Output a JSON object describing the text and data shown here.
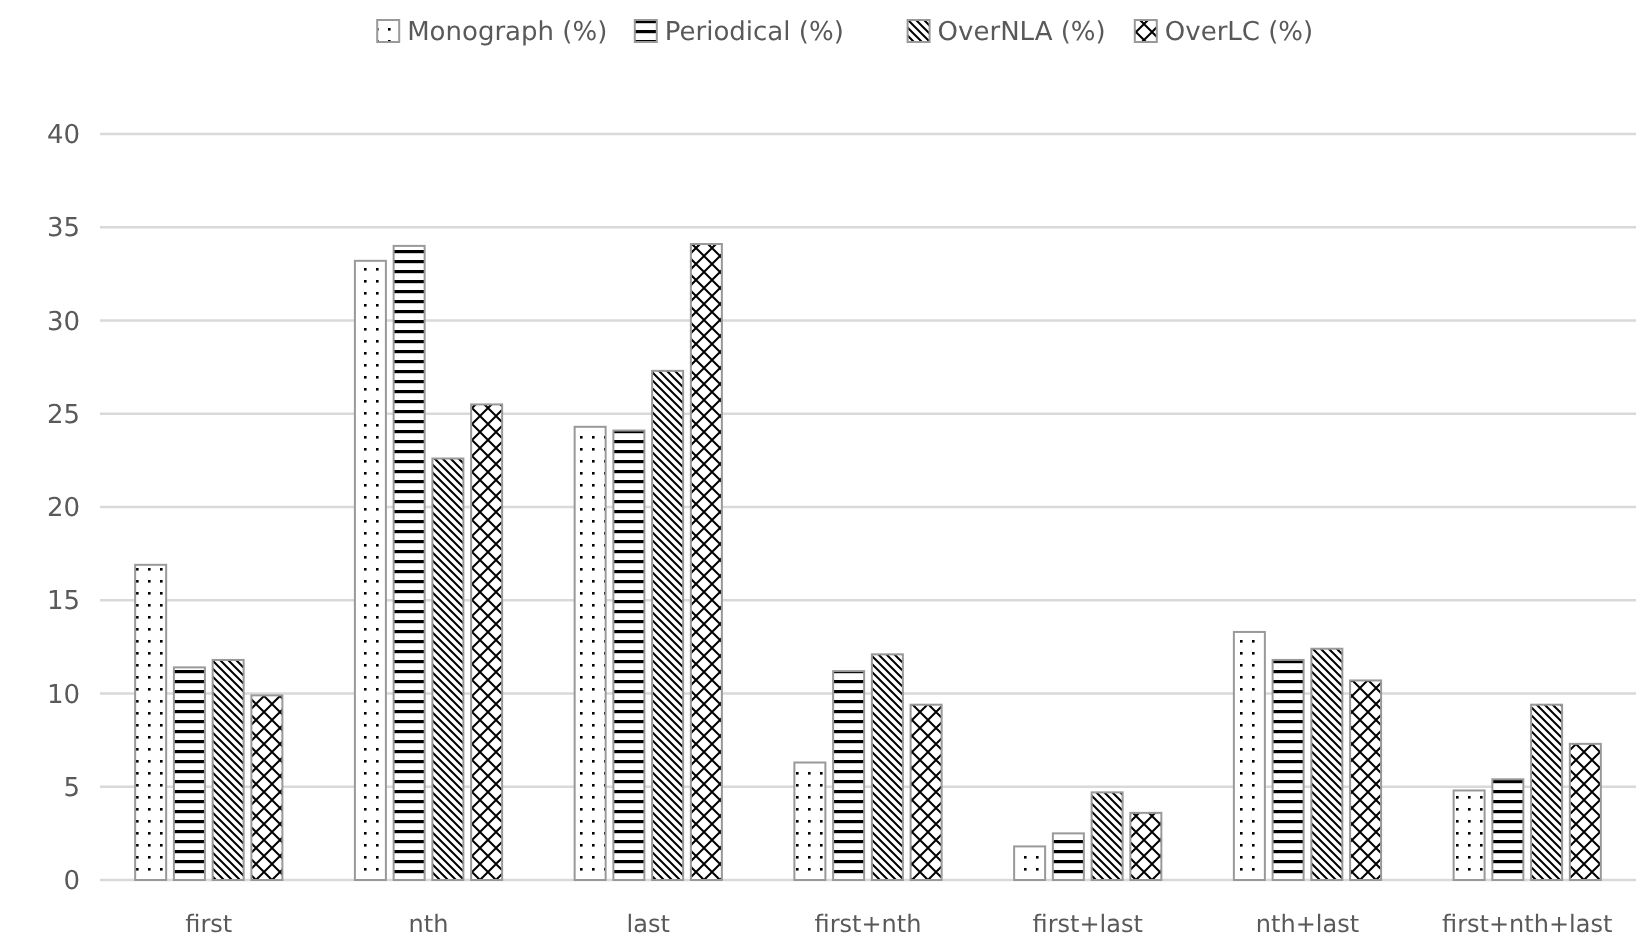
{
  "chart_data": {
    "type": "bar",
    "categories": [
      "first",
      "nth",
      "last",
      "first+nth",
      "first+last",
      "nth+last",
      "first+nth+last"
    ],
    "series": [
      {
        "name": "Monograph (%)",
        "color": "#999999",
        "values": [
          16.9,
          33.2,
          24.3,
          6.3,
          1.8,
          13.3,
          4.8
        ]
      },
      {
        "name": "Periodical (%)",
        "color": "#999999",
        "values": [
          11.4,
          34.0,
          24.1,
          11.2,
          2.5,
          11.8,
          5.4
        ]
      },
      {
        "name": "OverNLA (%)",
        "color": "#999999",
        "values": [
          11.8,
          22.6,
          27.3,
          12.1,
          4.7,
          12.4,
          9.4
        ]
      },
      {
        "name": "OverLC (%)",
        "color": "#999999",
        "values": [
          9.9,
          25.5,
          34.1,
          9.4,
          3.6,
          10.7,
          7.3
        ]
      }
    ],
    "ylim": [
      0,
      40
    ],
    "yticks": [
      0,
      5,
      10,
      15,
      20,
      25,
      30,
      35,
      40
    ],
    "grid": "y",
    "legend": "top"
  }
}
